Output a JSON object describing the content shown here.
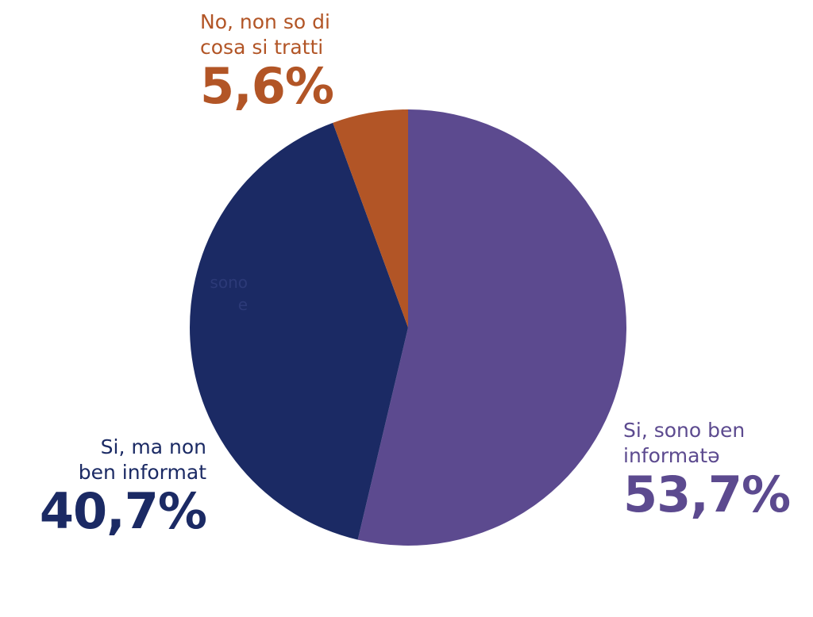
{
  "chart_data": {
    "type": "pie",
    "start_angle_deg": 0,
    "direction": "clockwise",
    "slices": [
      {
        "label": "Si, sono ben informatə",
        "display_value": "53,7%",
        "value": 53.7,
        "color": "#5c4a8f"
      },
      {
        "label": "Si, ma non ben informat",
        "display_value": "40,7%",
        "value": 40.7,
        "color": "#1b2a64"
      },
      {
        "label": "No, non so di cosa si tratti",
        "display_value": "5,6%",
        "value": 5.6,
        "color": "#b25526"
      }
    ],
    "label_lines": [
      [
        "Si, sono ben",
        "informatə"
      ],
      [
        "Si, ma non",
        "ben informat"
      ],
      [
        "No, non so di",
        "cosa si tratti"
      ]
    ],
    "ghost_text": "sono\ne"
  }
}
